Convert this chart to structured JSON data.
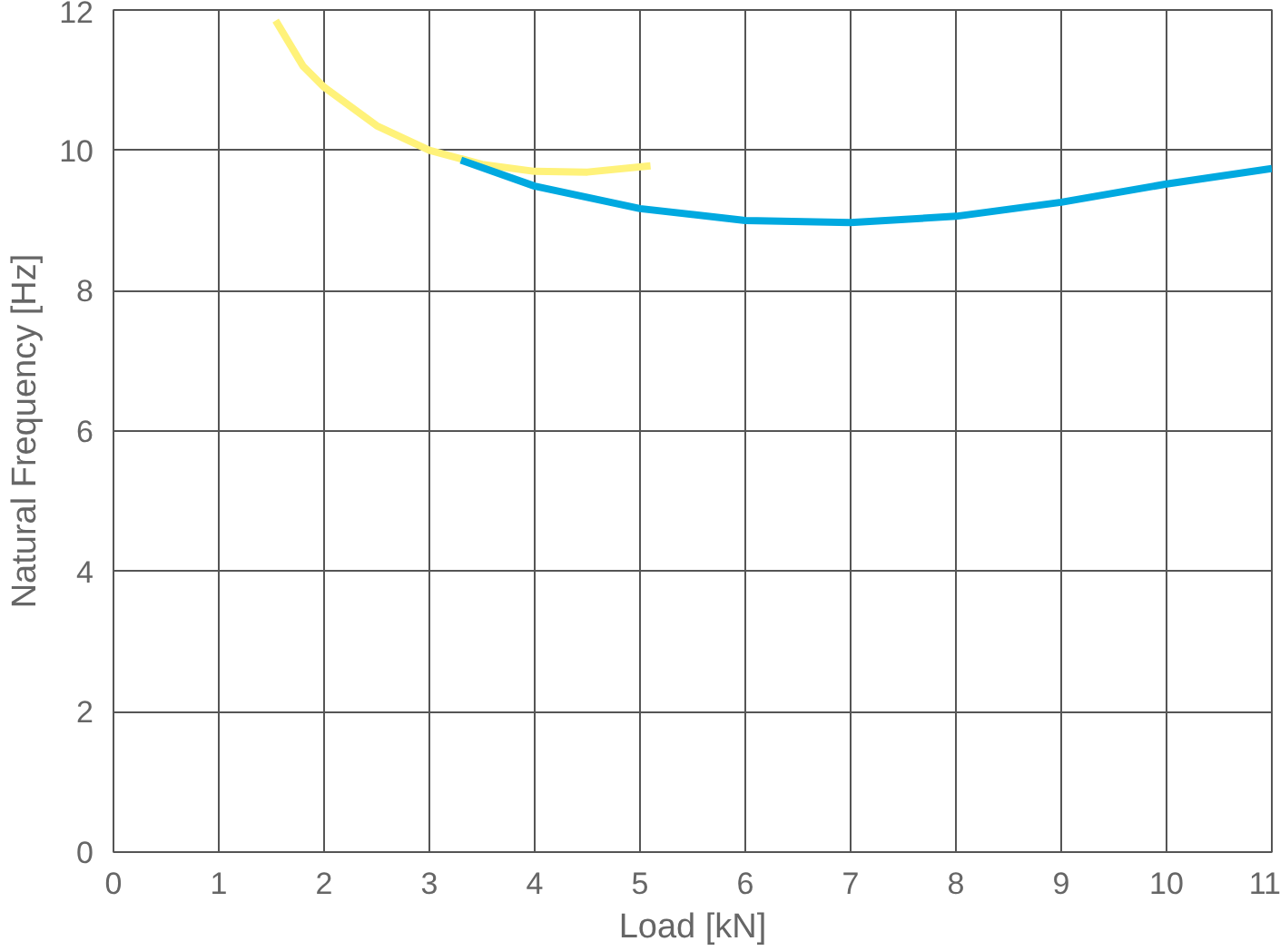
{
  "chart_data": {
    "type": "line",
    "xlabel": "Load [kN]",
    "ylabel": "Natural Frequency [Hz]",
    "xlim": [
      0,
      11
    ],
    "ylim": [
      0,
      12
    ],
    "xticks": [
      0,
      1,
      2,
      3,
      4,
      5,
      6,
      7,
      8,
      9,
      10,
      11
    ],
    "yticks": [
      0,
      2,
      4,
      6,
      8,
      10,
      12
    ],
    "grid": true,
    "marker": "none",
    "line_style": "solid",
    "series": [
      {
        "color": "#fff27a",
        "x": [
          1.54,
          1.8,
          2.0,
          2.5,
          3.0,
          3.5,
          4.0,
          4.5,
          5.1
        ],
        "values": [
          11.85,
          11.2,
          10.9,
          10.35,
          10.0,
          9.8,
          9.7,
          9.69,
          9.78
        ]
      },
      {
        "color": "#00a9e0",
        "x": [
          3.3,
          4.0,
          5,
          6,
          7,
          8,
          9,
          10,
          11
        ],
        "values": [
          9.86,
          9.49,
          9.17,
          9.0,
          8.97,
          9.06,
          9.26,
          9.52,
          9.74
        ]
      }
    ]
  }
}
